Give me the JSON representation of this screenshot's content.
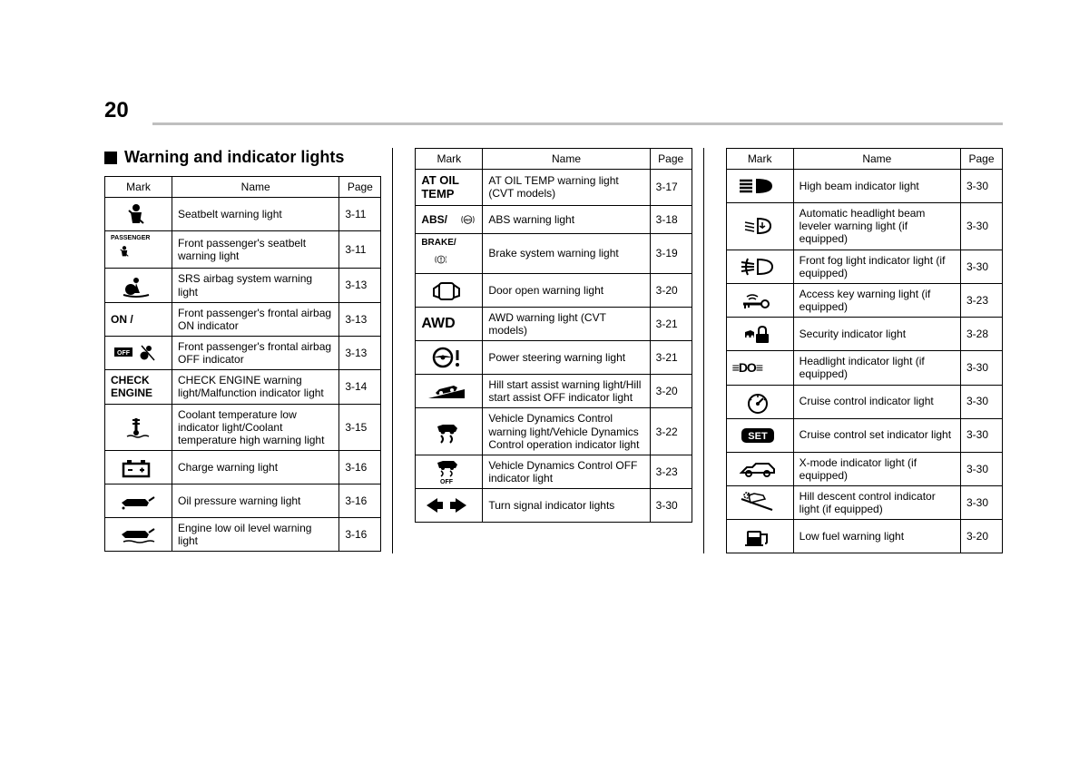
{
  "pageNumber": "20",
  "sectionTitle": "Warning and indicator lights",
  "headers": {
    "mark": "Mark",
    "name": "Name",
    "page": "Page"
  },
  "columns": [
    [
      {
        "icon": "seatbelt",
        "name": "Seatbelt warning light",
        "page": "3-11"
      },
      {
        "icon": "passenger-seatbelt",
        "markText": "PASSENGER",
        "name": "Front passenger's seatbelt warning light",
        "page": "3-11"
      },
      {
        "icon": "airbag",
        "name": "SRS airbag system warning light",
        "page": "3-13"
      },
      {
        "icon": "airbag-on",
        "markText": "ON /",
        "name": "Front passenger's frontal airbag ON indicator",
        "page": "3-13"
      },
      {
        "icon": "airbag-off",
        "markText": "OFF /",
        "name": "Front passenger's frontal airbag OFF indicator",
        "page": "3-13"
      },
      {
        "icon": "check-engine",
        "markText": "CHECK\nENGINE",
        "name": "CHECK ENGINE warning light/Malfunction indicator light",
        "page": "3-14"
      },
      {
        "icon": "coolant",
        "name": "Coolant temperature low indicator light/Coolant temperature high warning light",
        "page": "3-15"
      },
      {
        "icon": "battery",
        "name": "Charge warning light",
        "page": "3-16"
      },
      {
        "icon": "oil",
        "name": "Oil pressure warning light",
        "page": "3-16"
      },
      {
        "icon": "oil-low",
        "name": "Engine low oil level warning light",
        "page": "3-16"
      }
    ],
    [
      {
        "icon": "at-oil",
        "markText": "AT OIL\nTEMP",
        "name": "AT OIL TEMP warning light (CVT models)",
        "page": "3-17"
      },
      {
        "icon": "abs",
        "markText": "ABS /",
        "name": "ABS warning light",
        "page": "3-18"
      },
      {
        "icon": "brake",
        "markText": "BRAKE /",
        "name": "Brake system warning light",
        "page": "3-19"
      },
      {
        "icon": "door",
        "name": "Door open warning light",
        "page": "3-20"
      },
      {
        "icon": "awd",
        "markText": "AWD",
        "name": "AWD warning light (CVT models)",
        "page": "3-21"
      },
      {
        "icon": "steering",
        "name": "Power steering warning light",
        "page": "3-21"
      },
      {
        "icon": "hill-start",
        "name": "Hill start assist warning light/Hill start assist OFF indicator light",
        "page": "3-20"
      },
      {
        "icon": "vdc",
        "name": "Vehicle Dynamics Control warning light/Vehicle Dynamics Control operation indicator light",
        "page": "3-22"
      },
      {
        "icon": "vdc-off",
        "name": "Vehicle Dynamics Control OFF indicator light",
        "page": "3-23"
      },
      {
        "icon": "turn-signal",
        "name": "Turn signal indicator lights",
        "page": "3-30"
      }
    ],
    [
      {
        "icon": "high-beam",
        "name": "High beam indicator light",
        "page": "3-30"
      },
      {
        "icon": "headlight-level",
        "name": "Automatic headlight beam leveler warning light (if equipped)",
        "page": "3-30"
      },
      {
        "icon": "fog",
        "name": "Front fog light indicator light (if equipped)",
        "page": "3-30"
      },
      {
        "icon": "access-key",
        "name": "Access key warning light (if equipped)",
        "page": "3-23"
      },
      {
        "icon": "security",
        "name": "Security indicator light",
        "page": "3-28"
      },
      {
        "icon": "headlight",
        "markText": "≡DO≡",
        "name": "Headlight indicator light (if equipped)",
        "page": "3-30"
      },
      {
        "icon": "cruise",
        "name": "Cruise control indicator light",
        "page": "3-30"
      },
      {
        "icon": "cruise-set",
        "markText": "SET",
        "name": "Cruise control set indicator light",
        "page": "3-30"
      },
      {
        "icon": "xmode",
        "name": "X-mode indicator light (if equipped)",
        "page": "3-30"
      },
      {
        "icon": "hill-descent",
        "name": "Hill descent control indicator light (if equipped)",
        "page": "3-30"
      },
      {
        "icon": "fuel",
        "name": "Low fuel warning light",
        "page": "3-20"
      }
    ]
  ]
}
